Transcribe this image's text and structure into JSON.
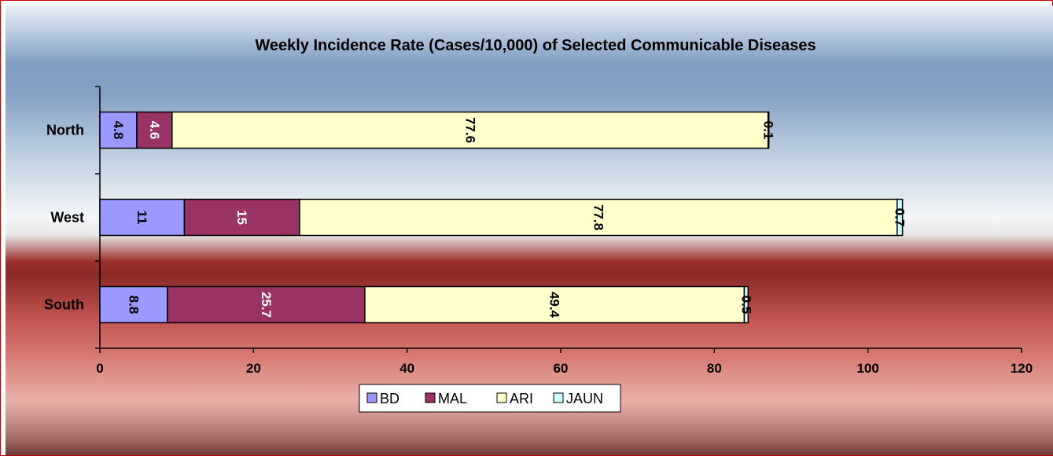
{
  "chart_data": {
    "type": "bar",
    "orientation": "horizontal",
    "stacked": true,
    "title": "Weekly Incidence Rate (Cases/10,000) of Selected Communicable Diseases",
    "categories": [
      "South",
      "West",
      "North"
    ],
    "series": [
      {
        "name": "BD",
        "color": "#9999ff",
        "values": [
          8.8,
          11,
          4.8
        ],
        "labels": [
          "8.8",
          "11",
          "4.8"
        ]
      },
      {
        "name": "MAL",
        "color": "#993366",
        "values": [
          25.7,
          15,
          4.6
        ],
        "labels": [
          "25.7",
          "15",
          "4.6"
        ]
      },
      {
        "name": "ARI",
        "color": "#ffffcc",
        "values": [
          49.4,
          77.8,
          77.6
        ],
        "labels": [
          "49.4",
          "77.8",
          "77.6"
        ]
      },
      {
        "name": "JAUN",
        "color": "#ccffff",
        "values": [
          0.5,
          0.7,
          0.1
        ],
        "labels": [
          "0.5",
          "0.7",
          "0.1"
        ]
      }
    ],
    "xlim": [
      0,
      120
    ],
    "xticks": [
      0,
      20,
      40,
      60,
      80,
      100,
      120
    ],
    "xlabel": "",
    "ylabel": "",
    "grid": false,
    "legend_position": "bottom"
  }
}
